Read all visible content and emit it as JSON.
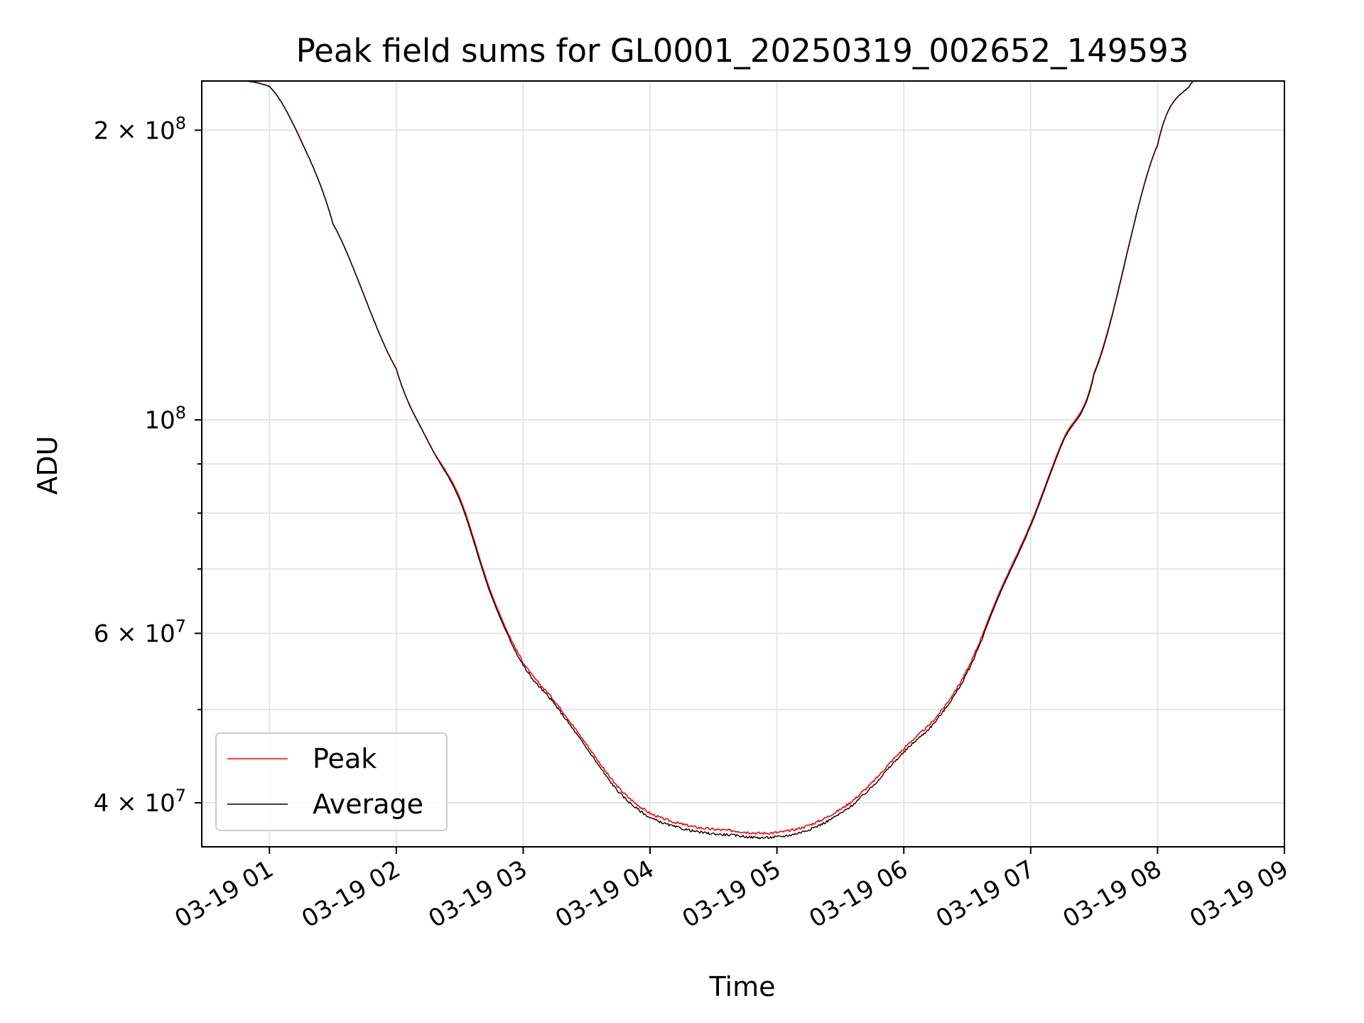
{
  "chart_data": {
    "type": "line",
    "title": "Peak field sums for GL0001_20250319_002652_149593",
    "xlabel": "Time",
    "ylabel": "ADU",
    "yscale": "log",
    "grid": true,
    "legend_position": "lower-left",
    "xlim": [
      "2025-03-19 00:28",
      "2025-03-19 09:00"
    ],
    "ylim": [
      36000000,
      225000000
    ],
    "x_ticks": [
      {
        "value": "2025-03-19 01:00",
        "label": "03-19 01"
      },
      {
        "value": "2025-03-19 02:00",
        "label": "03-19 02"
      },
      {
        "value": "2025-03-19 03:00",
        "label": "03-19 03"
      },
      {
        "value": "2025-03-19 04:00",
        "label": "03-19 04"
      },
      {
        "value": "2025-03-19 05:00",
        "label": "03-19 05"
      },
      {
        "value": "2025-03-19 06:00",
        "label": "03-19 06"
      },
      {
        "value": "2025-03-19 07:00",
        "label": "03-19 07"
      },
      {
        "value": "2025-03-19 08:00",
        "label": "03-19 08"
      },
      {
        "value": "2025-03-19 09:00",
        "label": "03-19 09"
      }
    ],
    "y_ticks": [
      {
        "value": 200000000,
        "base": "2 × 10",
        "exp": "8"
      },
      {
        "value": 100000000,
        "base": "10",
        "exp": "8"
      },
      {
        "value": 60000000,
        "base": "6 × 10",
        "exp": "7"
      },
      {
        "value": 40000000,
        "base": "4 × 10",
        "exp": "7"
      }
    ],
    "y_minor_ticks": [
      90000000,
      80000000,
      70000000,
      50000000
    ],
    "series": [
      {
        "name": "Peak",
        "color": "#ff0000",
        "x": [
          "2025-03-19 00:26",
          "2025-03-19 01:00",
          "2025-03-19 01:15",
          "2025-03-19 01:30",
          "2025-03-19 02:00",
          "2025-03-19 02:15",
          "2025-03-19 02:30",
          "2025-03-19 02:45",
          "2025-03-19 03:00",
          "2025-03-19 03:15",
          "2025-03-19 03:30",
          "2025-03-19 03:45",
          "2025-03-19 04:00",
          "2025-03-19 04:20",
          "2025-03-19 04:40",
          "2025-03-19 04:55",
          "2025-03-19 05:10",
          "2025-03-19 05:25",
          "2025-03-19 05:40",
          "2025-03-19 06:00",
          "2025-03-19 06:15",
          "2025-03-19 06:30",
          "2025-03-19 06:45",
          "2025-03-19 07:00",
          "2025-03-19 07:15",
          "2025-03-19 07:30",
          "2025-03-19 08:00",
          "2025-03-19 08:15",
          "2025-03-19 08:22"
        ],
        "y": [
          225000000,
          222000000,
          195000000,
          160000000,
          113000000,
          95000000,
          83000000,
          66000000,
          56000000,
          51000000,
          46000000,
          41500000,
          39000000,
          37800000,
          37400000,
          37200000,
          37600000,
          38800000,
          41000000,
          45500000,
          49000000,
          55000000,
          66000000,
          78000000,
          95000000,
          112000000,
          193000000,
          222000000,
          225000000
        ]
      },
      {
        "name": "Average",
        "color": "#000000",
        "x": [
          "2025-03-19 00:26",
          "2025-03-19 01:00",
          "2025-03-19 01:15",
          "2025-03-19 01:30",
          "2025-03-19 02:00",
          "2025-03-19 02:15",
          "2025-03-19 02:30",
          "2025-03-19 02:45",
          "2025-03-19 03:00",
          "2025-03-19 03:15",
          "2025-03-19 03:30",
          "2025-03-19 03:45",
          "2025-03-19 04:00",
          "2025-03-19 04:20",
          "2025-03-19 04:40",
          "2025-03-19 04:55",
          "2025-03-19 05:10",
          "2025-03-19 05:25",
          "2025-03-19 05:40",
          "2025-03-19 06:00",
          "2025-03-19 06:15",
          "2025-03-19 06:30",
          "2025-03-19 06:45",
          "2025-03-19 07:00",
          "2025-03-19 07:15",
          "2025-03-19 07:30",
          "2025-03-19 08:00",
          "2025-03-19 08:15",
          "2025-03-19 08:22"
        ],
        "y": [
          225000000,
          222000000,
          195000000,
          160000000,
          113000000,
          95000000,
          82500000,
          65600000,
          55600000,
          50600000,
          45600000,
          41100000,
          38600000,
          37400000,
          37000000,
          36800000,
          37200000,
          38400000,
          40600000,
          45100000,
          48600000,
          54600000,
          65600000,
          77600000,
          94600000,
          111600000,
          193000000,
          222000000,
          225000000
        ]
      }
    ]
  }
}
